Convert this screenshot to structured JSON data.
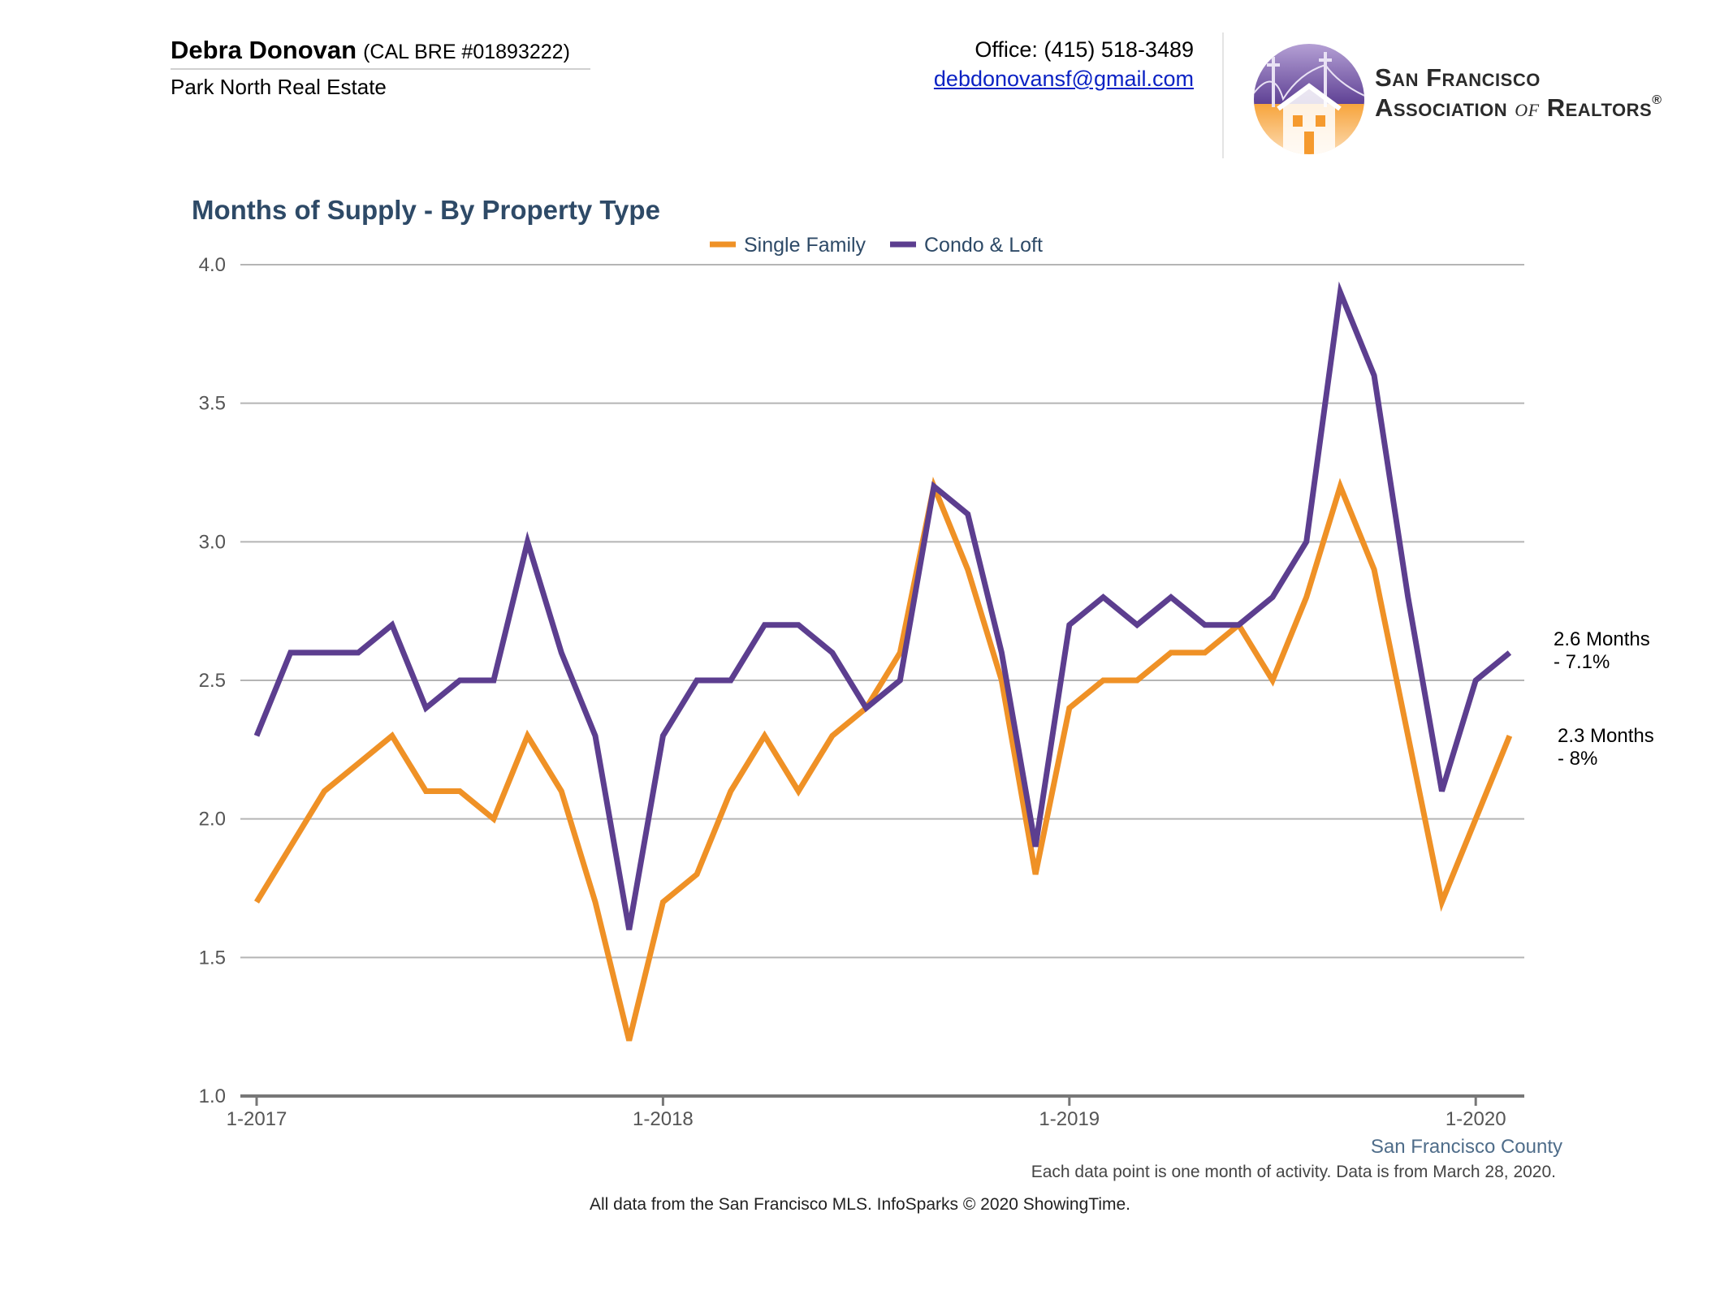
{
  "header": {
    "agent_name": "Debra Donovan",
    "agent_license": "(CAL BRE #01893222)",
    "brokerage": "Park North Real Estate",
    "office_phone": "Office: (415) 518-3489",
    "email": "debdonovansf@gmail.com",
    "logo_line1": "San Francisco",
    "logo_line2_a": "Association ",
    "logo_line2_of": "of",
    "logo_line2_b": " Realtors",
    "logo_registered": "®"
  },
  "colors": {
    "single_family": "#ef9126",
    "condo_loft": "#5c3e8f",
    "title": "#2e4a67",
    "region": "#4f6d8a",
    "grid": "#b5b5b5",
    "axis": "#777777"
  },
  "chart_data": {
    "type": "line",
    "title": "Months of Supply - By Property Type",
    "region_label": "San Francisco County",
    "legend_position": "top-center",
    "grid": true,
    "ylim": [
      1.0,
      4.0
    ],
    "yticks": [
      "1.0",
      "1.5",
      "2.0",
      "2.5",
      "3.0",
      "3.5",
      "4.0"
    ],
    "xticks": [
      {
        "label": "1-2017",
        "index": 0
      },
      {
        "label": "1-2018",
        "index": 12
      },
      {
        "label": "1-2019",
        "index": 24
      },
      {
        "label": "1-2020",
        "index": 36
      }
    ],
    "x": [
      "1-2017",
      "2-2017",
      "3-2017",
      "4-2017",
      "5-2017",
      "6-2017",
      "7-2017",
      "8-2017",
      "9-2017",
      "10-2017",
      "11-2017",
      "12-2017",
      "1-2018",
      "2-2018",
      "3-2018",
      "4-2018",
      "5-2018",
      "6-2018",
      "7-2018",
      "8-2018",
      "9-2018",
      "10-2018",
      "11-2018",
      "12-2018",
      "1-2019",
      "2-2019",
      "3-2019",
      "4-2019",
      "5-2019",
      "6-2019",
      "7-2019",
      "8-2019",
      "9-2019",
      "10-2019",
      "11-2019",
      "12-2019",
      "1-2020",
      "2-2020"
    ],
    "series": [
      {
        "name": "Single Family",
        "color": "#ef9126",
        "values": [
          1.7,
          1.9,
          2.1,
          2.2,
          2.3,
          2.1,
          2.1,
          2.0,
          2.3,
          2.1,
          1.7,
          1.2,
          1.7,
          1.8,
          2.1,
          2.3,
          2.1,
          2.3,
          2.4,
          2.6,
          3.2,
          2.9,
          2.5,
          1.8,
          2.4,
          2.5,
          2.5,
          2.6,
          2.6,
          2.7,
          2.5,
          2.8,
          3.2,
          2.9,
          2.3,
          1.7,
          2.0,
          2.3
        ],
        "end_label": [
          "2.3 Months",
          " - 8%"
        ]
      },
      {
        "name": "Condo & Loft",
        "color": "#5c3e8f",
        "values": [
          2.3,
          2.6,
          2.6,
          2.6,
          2.7,
          2.4,
          2.5,
          2.5,
          3.0,
          2.6,
          2.3,
          1.6,
          2.3,
          2.5,
          2.5,
          2.7,
          2.7,
          2.6,
          2.4,
          2.5,
          3.2,
          3.1,
          2.6,
          1.9,
          2.7,
          2.8,
          2.7,
          2.8,
          2.7,
          2.7,
          2.8,
          3.0,
          3.9,
          3.6,
          2.8,
          2.1,
          2.5,
          2.6
        ],
        "end_label": [
          "2.6 Months",
          "- 7.1%"
        ]
      }
    ]
  },
  "footer": {
    "note": "Each data point is one month of activity. Data is from March 28, 2020.",
    "source": "All data from the San Francisco MLS. InfoSparks © 2020 ShowingTime."
  }
}
